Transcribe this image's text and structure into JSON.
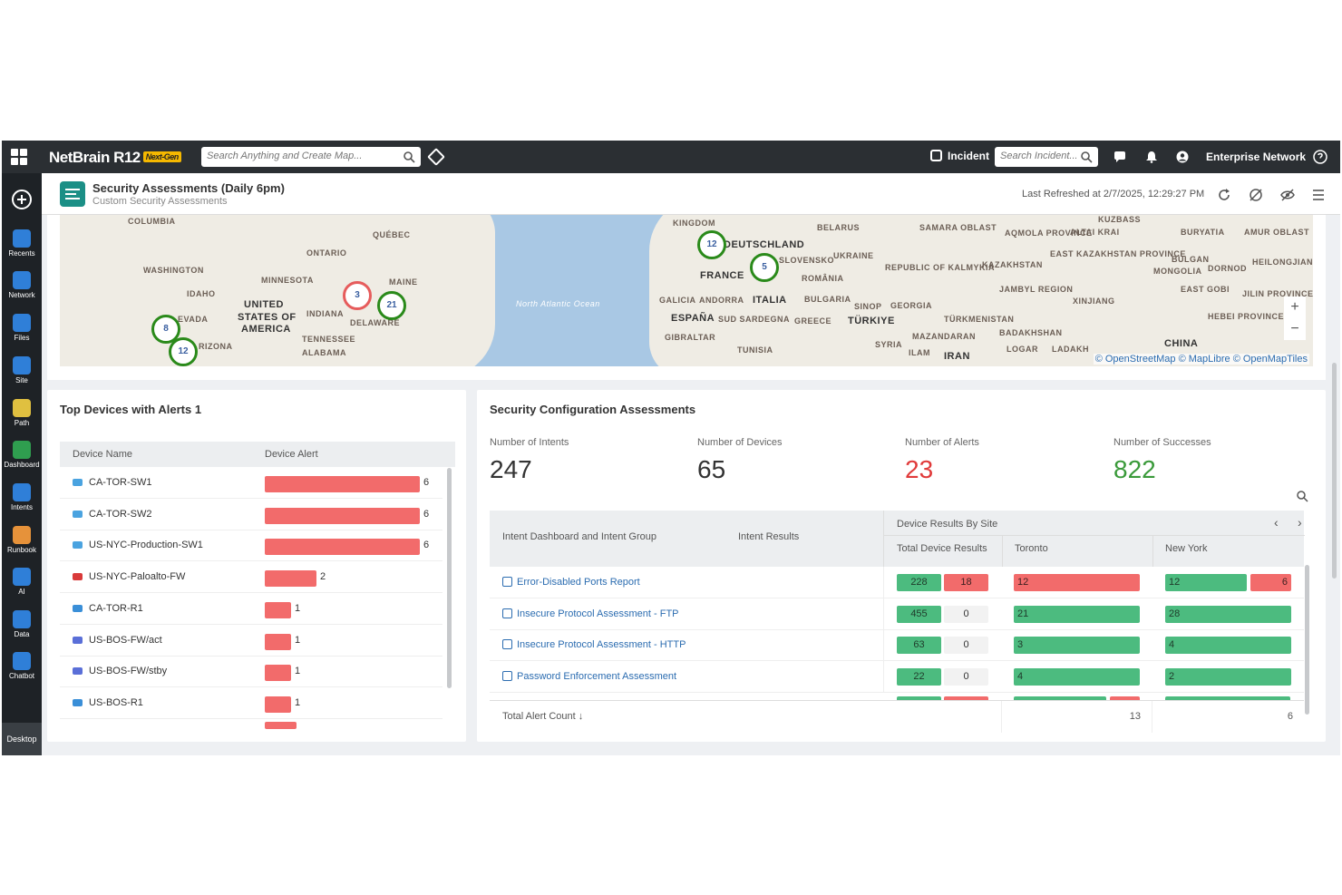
{
  "topbar": {
    "logo": "NetBrain R12",
    "logo_badge": "Next-Gen",
    "search_placeholder": "Search Anything and Create Map...",
    "incident_label": "Incident",
    "incident_search_placeholder": "Search Incident...",
    "domain_label": "Enterprise Network"
  },
  "leftnav": {
    "items": [
      {
        "label": "Recents",
        "icon": "recents-icon",
        "color": "#2f7fd8"
      },
      {
        "label": "Network",
        "icon": "network-icon",
        "color": "#2f7fd8"
      },
      {
        "label": "Files",
        "icon": "files-icon",
        "color": "#2f7fd8"
      },
      {
        "label": "Site",
        "icon": "site-icon",
        "color": "#2f7fd8"
      },
      {
        "label": "Path",
        "icon": "path-icon",
        "color": "#e0c040"
      },
      {
        "label": "Dashboard",
        "icon": "dashboard-icon",
        "color": "#2f9e4f"
      },
      {
        "label": "Intents",
        "icon": "intents-icon",
        "color": "#2f7fd8"
      },
      {
        "label": "Runbook",
        "icon": "runbook-icon",
        "color": "#e6923a"
      },
      {
        "label": "AI",
        "icon": "ai-icon",
        "color": "#2f7fd8"
      },
      {
        "label": "Data",
        "icon": "data-icon",
        "color": "#2f7fd8"
      },
      {
        "label": "Chatbot",
        "icon": "chatbot-icon",
        "color": "#2f7fd8"
      }
    ],
    "desktop_label": "Desktop"
  },
  "header": {
    "title": "Security Assessments (Daily 6pm)",
    "subtitle": "Custom Security Assessments",
    "last_refreshed": "Last Refreshed at 2/7/2025, 12:29:27 PM"
  },
  "map": {
    "labels": [
      {
        "t": "COLUMBIA"
      },
      {
        "t": "QUÉBEC"
      },
      {
        "t": "ONTARIO"
      },
      {
        "t": "WASHINGTON"
      },
      {
        "t": "MINNESOTA"
      },
      {
        "t": "MAINE"
      },
      {
        "t": "IDAHO"
      },
      {
        "t": "UNITED"
      },
      {
        "t": "STATES OF"
      },
      {
        "t": "AMERICA"
      },
      {
        "t": "INDIANA"
      },
      {
        "t": "DELAWARE"
      },
      {
        "t": "EVADA"
      },
      {
        "t": "RIZONA"
      },
      {
        "t": "TENNESSEE"
      },
      {
        "t": "ALABAMA"
      },
      {
        "t": "KINGDOM"
      },
      {
        "t": "DEUTSCHLAND"
      },
      {
        "t": "FRANCE"
      },
      {
        "t": "SLOVENSKO"
      },
      {
        "t": "UKRAINE"
      },
      {
        "t": "BELARUS"
      },
      {
        "t": "SAMARA OBLAST"
      },
      {
        "t": "ROMÂNIA"
      },
      {
        "t": "REPUBLIC OF KALMYKIA"
      },
      {
        "t": "GALICIA"
      },
      {
        "t": "ANDORRA"
      },
      {
        "t": "ITALIA"
      },
      {
        "t": "BULGARIA"
      },
      {
        "t": "ESPAÑA"
      },
      {
        "t": "SUD SARDEGNA"
      },
      {
        "t": "GREECE"
      },
      {
        "t": "TÜRKIYE"
      },
      {
        "t": "SINOP"
      },
      {
        "t": "GEORGIA"
      },
      {
        "t": "GIBRALTAR"
      },
      {
        "t": "TUNISIA"
      },
      {
        "t": "SYRIA"
      },
      {
        "t": "MAZANDARAN"
      },
      {
        "t": "IRAN"
      },
      {
        "t": "TÜRKMENISTAN"
      },
      {
        "t": "KAZAKHSTAN"
      },
      {
        "t": "AQMOLA PROVINCE"
      },
      {
        "t": "ALTAI KRAI"
      },
      {
        "t": "KUZBASS"
      },
      {
        "t": "EAST KAZAKHSTAN PROVINCE"
      },
      {
        "t": "JAMBYL REGION"
      },
      {
        "t": "XINJIANG"
      },
      {
        "t": "BADAKHSHAN"
      },
      {
        "t": "LOGAR"
      },
      {
        "t": "LADAKH"
      },
      {
        "t": "CHINA"
      },
      {
        "t": "BURYATIA"
      },
      {
        "t": "AMUR OBLAST"
      },
      {
        "t": "BULGAN"
      },
      {
        "t": "MONGOLIA"
      },
      {
        "t": "DORNOD"
      },
      {
        "t": "HEILONGJIANG PROVINCE"
      },
      {
        "t": "EAST GOBI"
      },
      {
        "t": "JILIN PROVINCE"
      },
      {
        "t": "HEBEI PROVINCE"
      },
      {
        "t": "North Atlantic Ocean"
      },
      {
        "t": "ILAM"
      }
    ],
    "clusters": [
      {
        "n": "12",
        "color": "green"
      },
      {
        "n": "5",
        "color": "green"
      },
      {
        "n": "3",
        "color": "red"
      },
      {
        "n": "21",
        "color": "green"
      },
      {
        "n": "8",
        "color": "green"
      },
      {
        "n": "12",
        "color": "green"
      }
    ],
    "attribution": [
      "© OpenStreetMap",
      "© MapLibre",
      "© OpenMapTiles"
    ]
  },
  "devices_panel": {
    "title": "Top Devices with Alerts 1",
    "col_name": "Device Name",
    "col_alert": "Device Alert",
    "rows": [
      {
        "name": "CA-TOR-SW1",
        "alerts": 6,
        "icon": "switch-icon",
        "icolor": "#4aa3e0"
      },
      {
        "name": "CA-TOR-SW2",
        "alerts": 6,
        "icon": "switch-icon",
        "icolor": "#4aa3e0"
      },
      {
        "name": "US-NYC-Production-SW1",
        "alerts": 6,
        "icon": "switch-icon",
        "icolor": "#4aa3e0"
      },
      {
        "name": "US-NYC-Paloalto-FW",
        "alerts": 2,
        "icon": "firewall-icon",
        "icolor": "#d93a3a"
      },
      {
        "name": "CA-TOR-R1",
        "alerts": 1,
        "icon": "router-icon",
        "icolor": "#3a8fd8"
      },
      {
        "name": "US-BOS-FW/act",
        "alerts": 1,
        "icon": "firewall-icon",
        "icolor": "#5a6fd8"
      },
      {
        "name": "US-BOS-FW/stby",
        "alerts": 1,
        "icon": "firewall-icon",
        "icolor": "#5a6fd8"
      },
      {
        "name": "US-BOS-R1",
        "alerts": 1,
        "icon": "router-icon",
        "icolor": "#3a8fd8"
      }
    ],
    "max_alerts": 6
  },
  "security_panel": {
    "title": "Security Configuration Assessments",
    "stats": [
      {
        "label": "Number of Intents",
        "value": "247",
        "color": "#333333"
      },
      {
        "label": "Number of Devices",
        "value": "65",
        "color": "#333333"
      },
      {
        "label": "Number of Alerts",
        "value": "23",
        "color": "#e03a3a"
      },
      {
        "label": "Number of Successes",
        "value": "822",
        "color": "#3a9a3a"
      }
    ],
    "table": {
      "col_intent": "Intent Dashboard and Intent Group",
      "col_results": "Intent Results",
      "col_by_site": "Device Results By Site",
      "col_total": "Total Device Results",
      "col_toronto": "Toronto",
      "col_newyork": "New York",
      "rows": [
        {
          "name": "Error-Disabled Ports Report",
          "total_ok": "228",
          "total_alert": "18",
          "toronto": {
            "v": "12",
            "s": "alert"
          },
          "ny_ok": "12",
          "ny_alert": "6"
        },
        {
          "name": "Insecure Protocol Assessment - FTP",
          "total_ok": "455",
          "total_alert": "0",
          "toronto": {
            "v": "21",
            "s": "ok"
          },
          "ny_ok": "28",
          "ny_alert": ""
        },
        {
          "name": "Insecure Protocol Assessment - HTTP",
          "total_ok": "63",
          "total_alert": "0",
          "toronto": {
            "v": "3",
            "s": "ok"
          },
          "ny_ok": "4",
          "ny_alert": ""
        },
        {
          "name": "Password Enforcement Assessment",
          "total_ok": "22",
          "total_alert": "0",
          "toronto": {
            "v": "4",
            "s": "ok"
          },
          "ny_ok": "2",
          "ny_alert": ""
        }
      ],
      "footer_label": "Total Alert Count",
      "footer_toronto": "13",
      "footer_newyork": "6"
    }
  }
}
